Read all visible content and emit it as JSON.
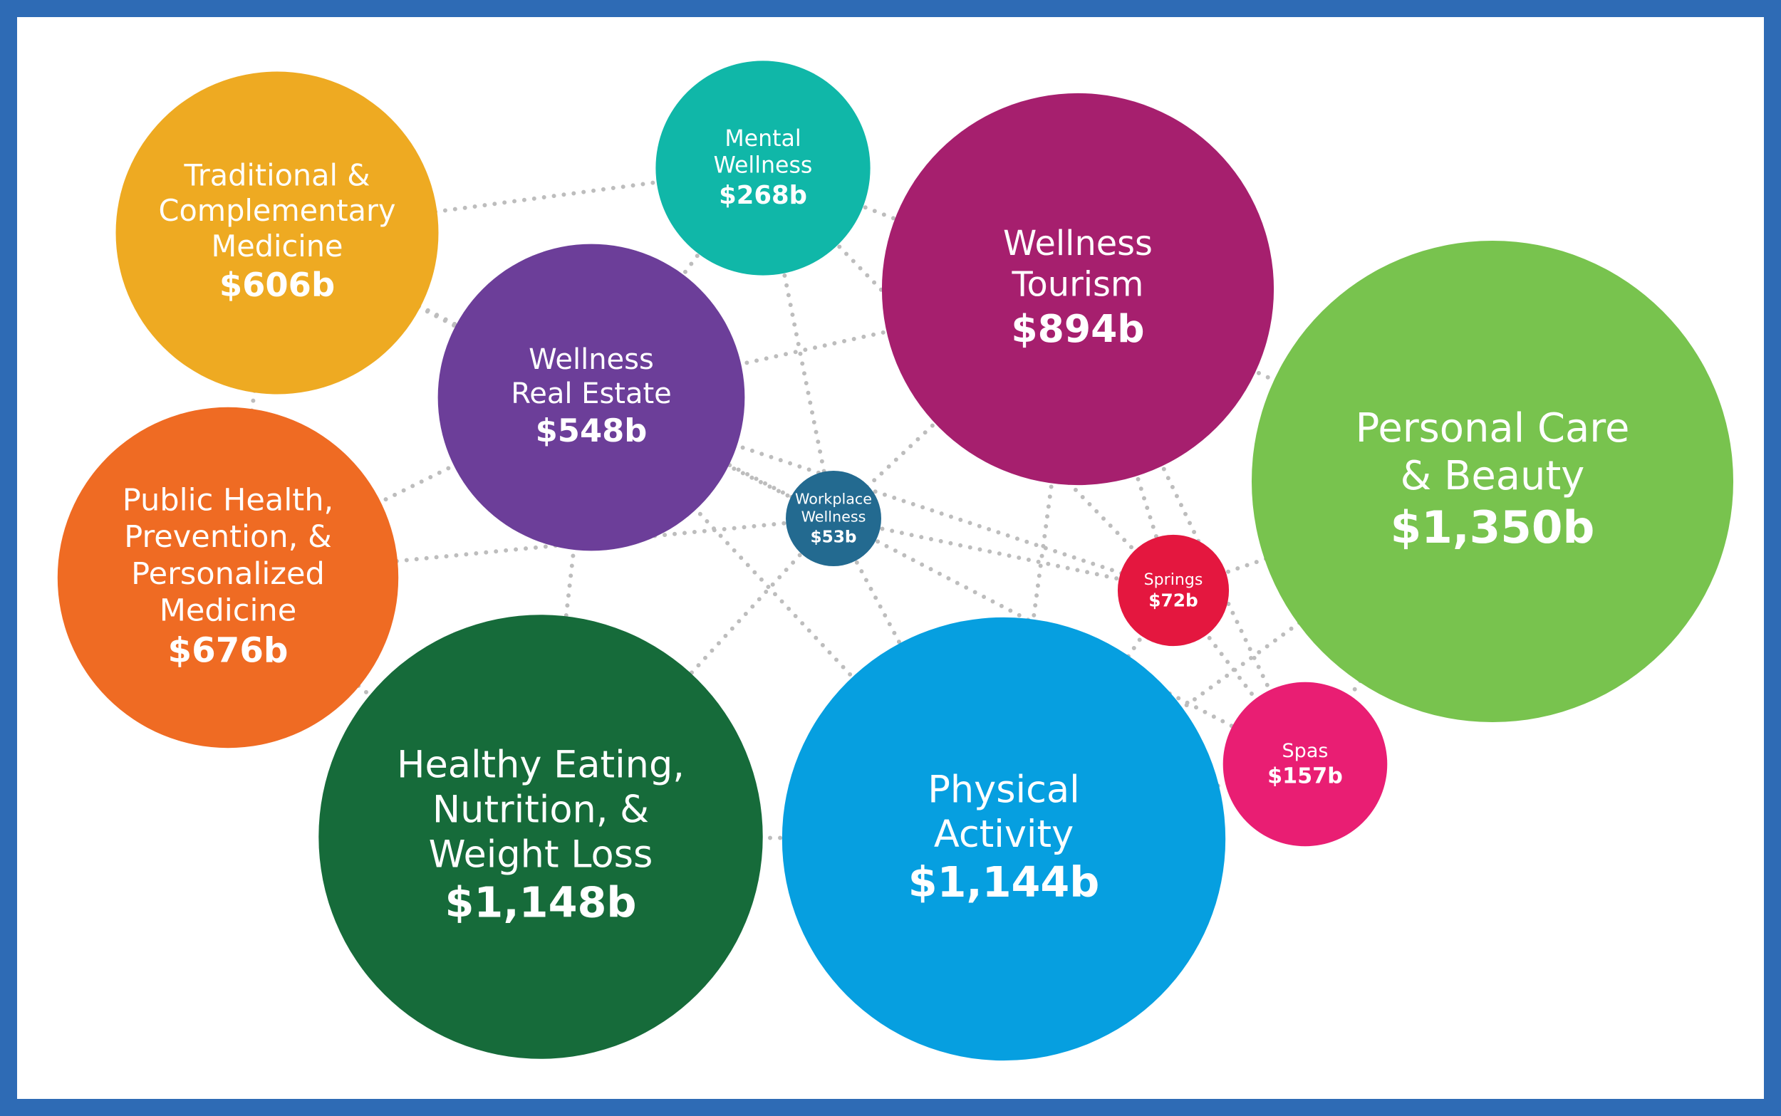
{
  "chart_data": {
    "type": "bubble",
    "categories": [
      "Traditional &\nComplementary\nMedicine",
      "Mental\nWellness",
      "Wellness\nTourism",
      "Personal Care\n& Beauty",
      "Wellness\nReal Estate",
      "Public Health,\nPrevention, &\nPersonalized\nMedicine",
      "Workplace\nWellness",
      "Springs",
      "Spas",
      "Healthy Eating,\nNutrition, &\nWeight Loss",
      "Physical\nActivity"
    ],
    "values": [
      606,
      268,
      894,
      1350,
      548,
      676,
      53,
      72,
      157,
      1148,
      1144
    ],
    "value_labels": [
      "$606b",
      "$268b",
      "$894b",
      "$1,350b",
      "$548b",
      "$676b",
      "$53b",
      "$72b",
      "$157b",
      "$1,148b",
      "$1,144b"
    ],
    "colors": [
      "#eeaa22",
      "#10b7a8",
      "#a61f6e",
      "#78c34e",
      "#6c3e99",
      "#ef6b23",
      "#236a90",
      "#e4173f",
      "#e91e73",
      "#166b3a",
      "#069fe0"
    ]
  }
}
